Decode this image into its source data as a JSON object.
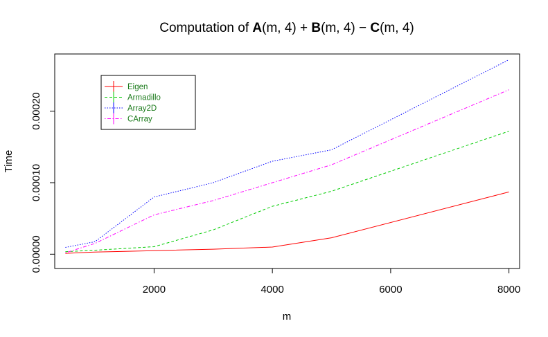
{
  "chart_data": {
    "type": "line",
    "title": {
      "prefix": "Computation of ",
      "a": "A",
      "args": "(m, 4)",
      "plus": " + ",
      "b": "B",
      "minus": " − ",
      "c": "C"
    },
    "xlabel": "m",
    "ylabel": "Time",
    "xlim": [
      320,
      8180
    ],
    "ylim": [
      -2e-05,
      0.00028
    ],
    "xticks": [
      2000,
      4000,
      6000,
      8000
    ],
    "xtick_labels": [
      "2000",
      "4000",
      "6000",
      "8000"
    ],
    "yticks": [
      0,
      0.0001,
      0.0002
    ],
    "ytick_labels": [
      "0.00000",
      "0.00010",
      "0.00020"
    ],
    "grid": false,
    "legend_position": "top-left",
    "x": [
      500,
      1000,
      2000,
      3000,
      4000,
      5000,
      8000
    ],
    "series": [
      {
        "name": "Eigen",
        "color": "#ff0000",
        "dash": "solid",
        "values": [
          1.2e-06,
          3e-06,
          5e-06,
          7e-06,
          1e-05,
          2.3e-05,
          8.7e-05
        ]
      },
      {
        "name": "Armadillo",
        "color": "#00cc00",
        "dash": "dashed",
        "values": [
          3.5e-06,
          5.5e-06,
          1.05e-05,
          3.4e-05,
          6.7e-05,
          8.8e-05,
          0.000172
        ]
      },
      {
        "name": "Array2D",
        "color": "#0000ff",
        "dash": "dotted",
        "values": [
          9.5e-06,
          1.75e-05,
          8e-05,
          0.0001,
          0.00013,
          0.000146,
          0.000272
        ]
      },
      {
        "name": "CArray",
        "color": "#ff00ff",
        "dash": "dotdash",
        "values": [
          2e-06,
          1.5e-05,
          5.5e-05,
          7.5e-05,
          0.0001,
          0.000125,
          0.00023
        ]
      }
    ]
  }
}
